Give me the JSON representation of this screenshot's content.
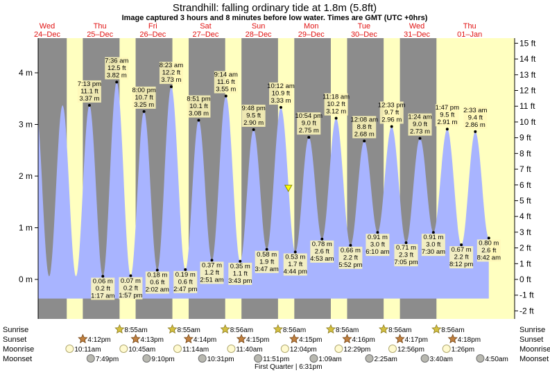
{
  "chart_data": {
    "type": "area",
    "title": "Strandhill: falling  ordinary tide at 1.8m (5.8ft)",
    "subtitle": "Image captured 3 hours and 8 minutes before low water. Times are GMT (UTC +0hrs)",
    "ylabel_left_unit": "m",
    "ylabel_right_unit": "ft",
    "ylim_m": [
      -0.5,
      4.6
    ],
    "yticks_m": [
      0,
      1,
      2,
      3,
      4
    ],
    "yticks_ft": [
      -2,
      -1,
      0,
      1,
      2,
      3,
      4,
      5,
      6,
      7,
      8,
      9,
      10,
      11,
      12,
      13,
      14,
      15
    ],
    "x_start_hours": 0,
    "x_end_hours": 192,
    "days": [
      {
        "dow": "Wed",
        "date": "24–Dec"
      },
      {
        "dow": "Thu",
        "date": "25–Dec"
      },
      {
        "dow": "Fri",
        "date": "26–Dec"
      },
      {
        "dow": "Sat",
        "date": "27–Dec"
      },
      {
        "dow": "Sun",
        "date": "28–Dec"
      },
      {
        "dow": "Mon",
        "date": "29–Dec"
      },
      {
        "dow": "Tue",
        "date": "30–Dec"
      },
      {
        "dow": "Wed",
        "date": "31–Dec"
      },
      {
        "dow": "Thu",
        "date": "01–Jan"
      }
    ],
    "night_shading": [
      {
        "start": -8,
        "end": 8.9
      },
      {
        "start": 16.2,
        "end": 32.9
      },
      {
        "start": 40.2,
        "end": 56.9
      },
      {
        "start": 64.3,
        "end": 80.9
      },
      {
        "start": 88.3,
        "end": 104.9
      },
      {
        "start": 112.3,
        "end": 128.9
      },
      {
        "start": 136.3,
        "end": 152.9
      },
      {
        "start": 160.3,
        "end": 176.9
      }
    ],
    "extremes": [
      {
        "type": "high",
        "t": 19.2,
        "time": "7:13 pm",
        "ft": "11.1 ft",
        "m": 3.37,
        "m_label": "3.37 m"
      },
      {
        "type": "low",
        "t": 25.3,
        "time": "1:17 am",
        "ft": "0.2 ft",
        "m": 0.06,
        "m_label": "0.06 m"
      },
      {
        "type": "high",
        "t": 31.6,
        "time": "7:36 am",
        "ft": "12.5 ft",
        "m": 3.82,
        "m_label": "3.82 m"
      },
      {
        "type": "low",
        "t": 37.95,
        "time": "1:57 pm",
        "ft": "0.2 ft",
        "m": 0.07,
        "m_label": "0.07 m"
      },
      {
        "type": "high",
        "t": 44.0,
        "time": "8:00 pm",
        "ft": "10.7 ft",
        "m": 3.25,
        "m_label": "3.25 m"
      },
      {
        "type": "low",
        "t": 50.05,
        "time": "2:02 am",
        "ft": "0.6 ft",
        "m": 0.18,
        "m_label": "0.18 m"
      },
      {
        "type": "high",
        "t": 56.4,
        "time": "8:23 am",
        "ft": "12.2 ft",
        "m": 3.73,
        "m_label": "3.73 m"
      },
      {
        "type": "low",
        "t": 62.8,
        "time": "2:47 pm",
        "ft": "0.6 ft",
        "m": 0.19,
        "m_label": "0.19 m"
      },
      {
        "type": "high",
        "t": 68.85,
        "time": "8:51 pm",
        "ft": "10.1 ft",
        "m": 3.08,
        "m_label": "3.08 m"
      },
      {
        "type": "low",
        "t": 74.85,
        "time": "2:51 am",
        "ft": "1.2 ft",
        "m": 0.37,
        "m_label": "0.37 m"
      },
      {
        "type": "high",
        "t": 81.25,
        "time": "9:14 am",
        "ft": "11.6 ft",
        "m": 3.55,
        "m_label": "3.55 m"
      },
      {
        "type": "low",
        "t": 87.7,
        "time": "3:43 pm",
        "ft": "1.1 ft",
        "m": 0.35,
        "m_label": "0.35 m"
      },
      {
        "type": "high",
        "t": 93.8,
        "time": "9:48 pm",
        "ft": "9.5 ft",
        "m": 2.9,
        "m_label": "2.90 m"
      },
      {
        "type": "low",
        "t": 99.8,
        "time": "3:47 am",
        "ft": "1.9 ft",
        "m": 0.58,
        "m_label": "0.58 m"
      },
      {
        "type": "high",
        "t": 106.2,
        "time": "10:12 am",
        "ft": "10.9 ft",
        "m": 3.33,
        "m_label": "3.33 m"
      },
      {
        "type": "low",
        "t": 112.75,
        "time": "4:44 pm",
        "ft": "1.7 ft",
        "m": 0.53,
        "m_label": "0.53 m"
      },
      {
        "type": "high",
        "t": 118.9,
        "time": "10:54 pm",
        "ft": "9.0 ft",
        "m": 2.75,
        "m_label": "2.75 m"
      },
      {
        "type": "low",
        "t": 124.9,
        "time": "4:53 am",
        "ft": "2.6 ft",
        "m": 0.78,
        "m_label": "0.78 m"
      },
      {
        "type": "high",
        "t": 131.3,
        "time": "11:18 am",
        "ft": "10.2 ft",
        "m": 3.12,
        "m_label": "3.12 m"
      },
      {
        "type": "low",
        "t": 137.85,
        "time": "5:52 pm",
        "ft": "2.2 ft",
        "m": 0.66,
        "m_label": "0.66 m"
      },
      {
        "type": "high",
        "t": 144.1,
        "time": "12:08 am",
        "ft": "8.8 ft",
        "m": 2.68,
        "m_label": "2.68 m"
      },
      {
        "type": "low",
        "t": 150.15,
        "time": "6:10 am",
        "ft": "3.0 ft",
        "m": 0.91,
        "m_label": "0.91 m"
      },
      {
        "type": "high",
        "t": 156.55,
        "time": "12:33 pm",
        "ft": "9.7 ft",
        "m": 2.96,
        "m_label": "2.96 m"
      },
      {
        "type": "low",
        "t": 163.1,
        "time": "7:05 pm",
        "ft": "2.3 ft",
        "m": 0.71,
        "m_label": "0.71 m"
      },
      {
        "type": "high",
        "t": 169.4,
        "time": "1:24 am",
        "ft": "9.0 ft",
        "m": 2.73,
        "m_label": "2.73 m"
      },
      {
        "type": "low",
        "t": 175.5,
        "time": "7:30 am",
        "ft": "3.0 ft",
        "m": 0.91,
        "m_label": "0.91 m"
      },
      {
        "type": "high",
        "t": 181.8,
        "time": "1:47 pm",
        "ft": "9.5 ft",
        "m": 2.91,
        "m_label": "2.91 m"
      },
      {
        "type": "low",
        "t": 188.2,
        "time": "8:12 pm",
        "ft": "2.2 ft",
        "m": 0.67,
        "m_label": "0.67 m"
      },
      {
        "type": "high",
        "t": 194.55,
        "time": "2:33 am",
        "ft": "9.4 ft",
        "m": 2.86,
        "m_label": "2.86 m"
      },
      {
        "type": "low",
        "t": 200.7,
        "time": "8:42 am",
        "ft": "2.6 ft",
        "m": 0.8,
        "m_label": "0.80 m"
      }
    ],
    "current": {
      "t": 109.6,
      "m": 1.77
    },
    "rows": [
      {
        "label": "Sunrise",
        "icon": "sun-icon",
        "events": [
          {
            "t": 32.9,
            "time": "8:55am"
          },
          {
            "t": 56.9,
            "time": "8:55am"
          },
          {
            "t": 80.9,
            "time": "8:56am"
          },
          {
            "t": 104.9,
            "time": "8:56am"
          },
          {
            "t": 128.9,
            "time": "8:56am"
          },
          {
            "t": 152.9,
            "time": "8:56am"
          },
          {
            "t": 176.9,
            "time": "8:56am"
          }
        ]
      },
      {
        "label": "Sunset",
        "icon": "star-icon",
        "events": [
          {
            "t": 16.2,
            "time": "4:12pm"
          },
          {
            "t": 40.2,
            "time": "4:13pm"
          },
          {
            "t": 64.25,
            "time": "4:14pm"
          },
          {
            "t": 88.25,
            "time": "4:15pm"
          },
          {
            "t": 112.25,
            "time": "4:15pm"
          },
          {
            "t": 136.3,
            "time": "4:16pm"
          },
          {
            "t": 160.3,
            "time": "4:17pm"
          },
          {
            "t": 184.3,
            "time": "4:18pm"
          }
        ]
      },
      {
        "label": "Moonrise",
        "icon": "moonrise-icon",
        "events": [
          {
            "t": 10.2,
            "time": "10:11am"
          },
          {
            "t": 34.75,
            "time": "10:45am"
          },
          {
            "t": 59.25,
            "time": "11:14am"
          },
          {
            "t": 83.65,
            "time": "11:40am"
          },
          {
            "t": 108.05,
            "time": "12:04pm"
          },
          {
            "t": 132.5,
            "time": "12:29pm"
          },
          {
            "t": 156.95,
            "time": "12:56pm"
          },
          {
            "t": 181.45,
            "time": "1:26pm"
          }
        ]
      },
      {
        "label": "Moonset",
        "icon": "moonset-icon",
        "events": [
          {
            "t": 19.8,
            "time": "7:49pm"
          },
          {
            "t": 45.2,
            "time": "9:10pm"
          },
          {
            "t": 70.5,
            "time": "10:31pm"
          },
          {
            "t": 95.85,
            "time": "11:51pm"
          },
          {
            "t": 121.15,
            "time": "1:09am"
          },
          {
            "t": 146.4,
            "time": "2:25am"
          },
          {
            "t": 171.65,
            "time": "3:40am"
          },
          {
            "t": 196.8,
            "time": "4:50am"
          }
        ]
      }
    ],
    "moon_phase_note": "First Quarter | 6:31pm",
    "colors": {
      "day_bg": "#ffffc0",
      "night_bg": "#8c8c8c",
      "water": "#a8b4ff",
      "label_bg": "#fff8b8"
    }
  }
}
